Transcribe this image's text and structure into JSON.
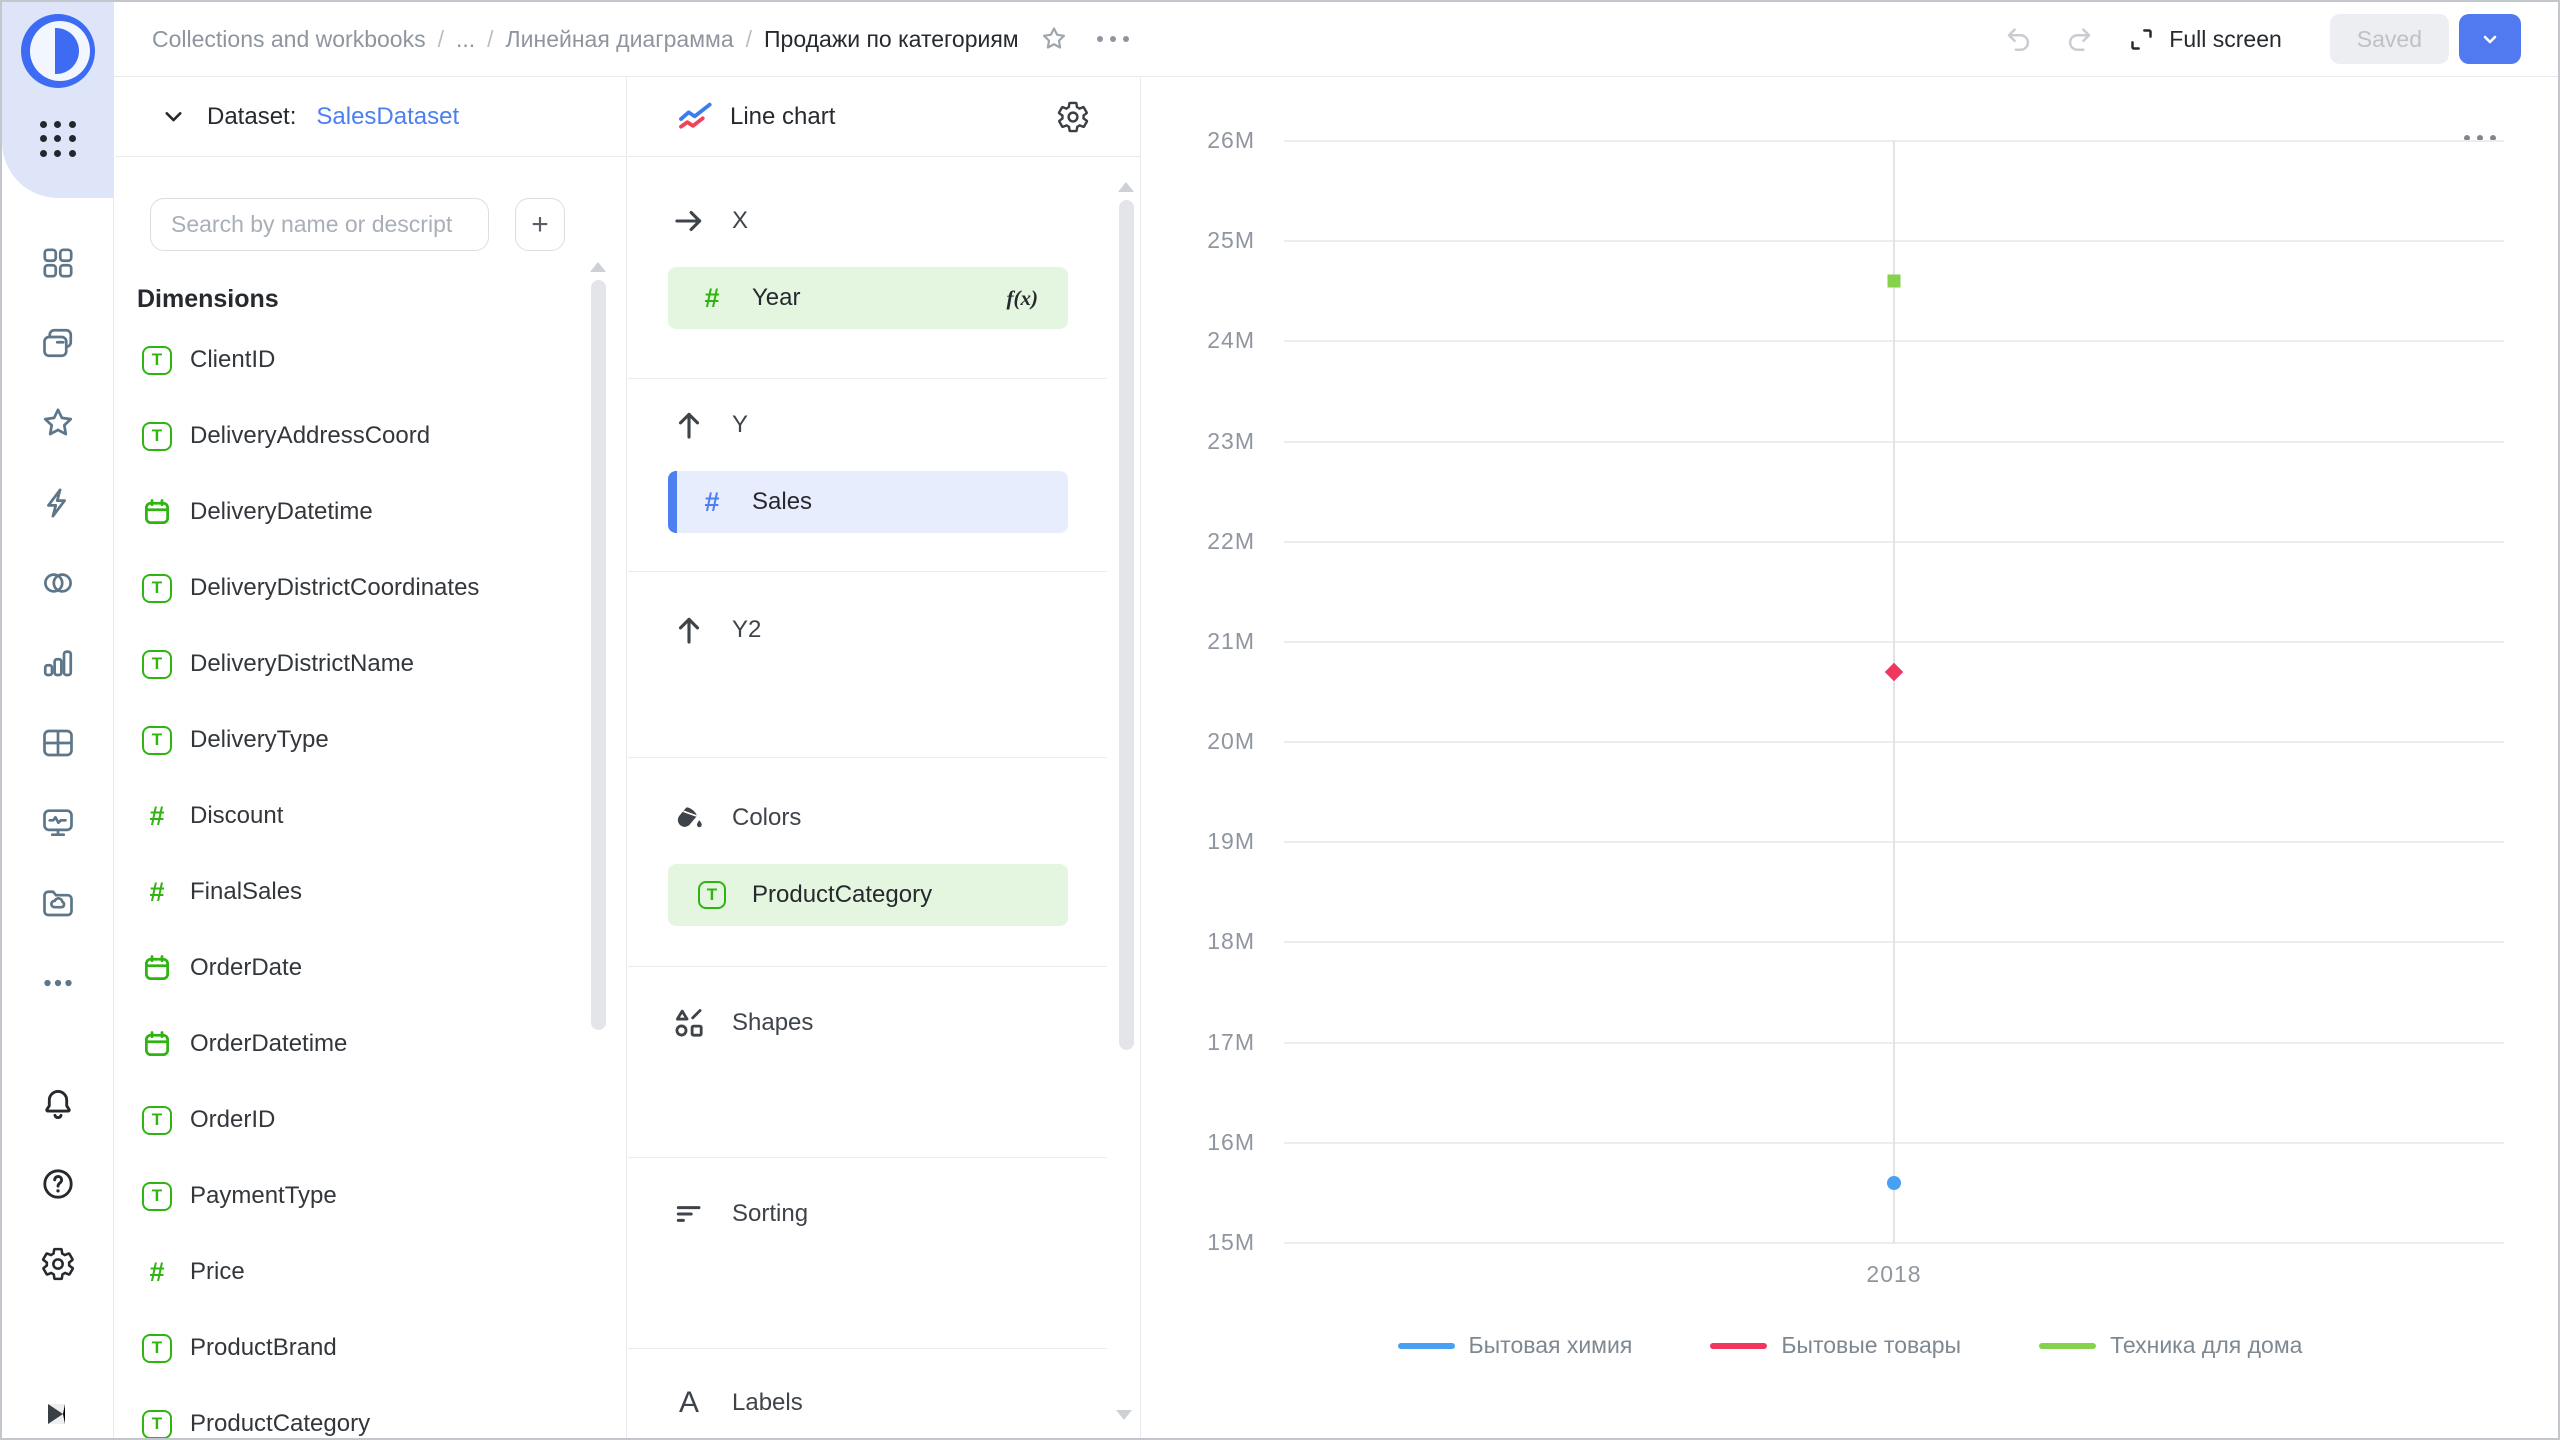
{
  "header": {
    "separator": "/",
    "breadcrumbs": [
      {
        "label": "Collections and workbooks"
      },
      {
        "label": "..."
      },
      {
        "label": "Линейная диаграмма"
      },
      {
        "label": "Продажи по категориям"
      }
    ],
    "full_screen": "Full screen",
    "saved": "Saved"
  },
  "dataset_panel": {
    "label": "Dataset:",
    "name": "SalesDataset",
    "search_placeholder": "Search by name or descript",
    "add_button": "+",
    "dimensions_title": "Dimensions",
    "fields": [
      {
        "name": "ClientID",
        "type": "text"
      },
      {
        "name": "DeliveryAddressCoord",
        "type": "text"
      },
      {
        "name": "DeliveryDatetime",
        "type": "date"
      },
      {
        "name": "DeliveryDistrictCoordinates",
        "type": "text"
      },
      {
        "name": "DeliveryDistrictName",
        "type": "text"
      },
      {
        "name": "DeliveryType",
        "type": "text"
      },
      {
        "name": "Discount",
        "type": "number"
      },
      {
        "name": "FinalSales",
        "type": "number"
      },
      {
        "name": "OrderDate",
        "type": "date"
      },
      {
        "name": "OrderDatetime",
        "type": "date"
      },
      {
        "name": "OrderID",
        "type": "text"
      },
      {
        "name": "PaymentType",
        "type": "text"
      },
      {
        "name": "Price",
        "type": "number"
      },
      {
        "name": "ProductBrand",
        "type": "text"
      },
      {
        "name": "ProductCategory",
        "type": "text"
      }
    ]
  },
  "viz_panel": {
    "chart_type_label": "Line chart",
    "sections": {
      "x": "X",
      "y": "Y",
      "y2": "Y2",
      "colors": "Colors",
      "shapes": "Shapes",
      "sorting": "Sorting",
      "labels": "Labels"
    },
    "x_field": "Year",
    "x_field_formula_badge": "f(x)",
    "y_field": "Sales",
    "colors_field": "ProductCategory",
    "labels_icon_glyph": "A"
  },
  "chart_data": {
    "type": "line",
    "x_categories": [
      "2018"
    ],
    "series": [
      {
        "name": "Бытовая химия",
        "color": "#47A0F1",
        "marker": "circle",
        "values": [
          15600000
        ]
      },
      {
        "name": "Бытовые товары",
        "color": "#EF3760",
        "marker": "diamond",
        "values": [
          20700000
        ]
      },
      {
        "name": "Техника для дома",
        "color": "#85D24D",
        "marker": "square",
        "values": [
          24600000
        ]
      }
    ],
    "y_axis": {
      "min": 15000000,
      "max": 26000000,
      "tick_interval": 1000000,
      "tick_labels": [
        "26M",
        "25M",
        "24M",
        "23M",
        "22M",
        "21M",
        "20M",
        "19M",
        "18M",
        "17M",
        "16M",
        "15M"
      ]
    },
    "grid": true,
    "legend_position": "bottom"
  },
  "icons": {
    "sidebar": [
      "apps-grid-icon",
      "dashboards-icon",
      "workbooks-icon",
      "favorites-icon",
      "quick-actions-icon",
      "connections-icon",
      "charts-icon",
      "tables-icon",
      "monitoring-icon",
      "storage-icon",
      "more-icon",
      "notifications-icon",
      "help-icon",
      "settings-icon",
      "collapse-icon"
    ],
    "header": [
      "star-icon",
      "ellipsis-icon",
      "undo-icon",
      "redo-icon",
      "expand-icon",
      "chevron-down-icon"
    ],
    "panels": [
      "chevron-down-icon",
      "plus-icon",
      "line-chart-icon",
      "gear-icon",
      "arrow-right-icon",
      "arrow-up-icon",
      "paint-bucket-icon",
      "shapes-icon",
      "sorting-icon",
      "labels-icon",
      "formula-icon",
      "text-type-icon",
      "number-type-icon",
      "date-type-icon"
    ]
  }
}
